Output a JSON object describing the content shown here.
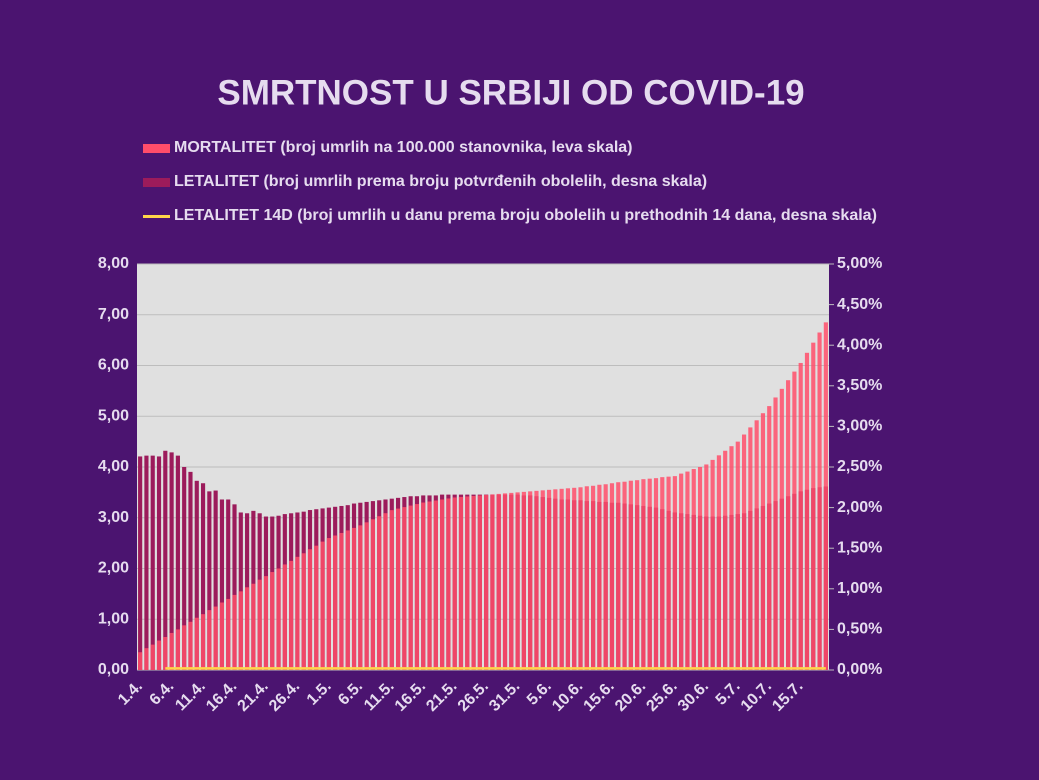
{
  "chart_data": {
    "type": "bar",
    "title": "SMRTNOST U SRBIJI OD COVID-19",
    "categories": [
      "1.4.",
      null,
      null,
      null,
      null,
      "6.4.",
      null,
      null,
      null,
      null,
      "11.4.",
      null,
      null,
      null,
      null,
      "16.4.",
      null,
      null,
      null,
      null,
      "21.4.",
      null,
      null,
      null,
      null,
      "26.4.",
      null,
      null,
      null,
      null,
      "1.5.",
      null,
      null,
      null,
      null,
      "6.5.",
      null,
      null,
      null,
      null,
      "11.5.",
      null,
      null,
      null,
      null,
      "16.5.",
      null,
      null,
      null,
      null,
      "21.5.",
      null,
      null,
      null,
      null,
      "26.5.",
      null,
      null,
      null,
      null,
      "31.5.",
      null,
      null,
      null,
      null,
      "5.6.",
      null,
      null,
      null,
      null,
      "10.6.",
      null,
      null,
      null,
      null,
      "15.6.",
      null,
      null,
      null,
      null,
      "20.6.",
      null,
      null,
      null,
      null,
      "25.6.",
      null,
      null,
      null,
      null,
      "30.6.",
      null,
      null,
      null,
      null,
      "5.7.",
      null,
      null,
      null,
      null,
      "10.7.",
      null,
      null,
      null,
      null,
      "15.7.",
      null,
      null,
      null,
      null
    ],
    "series": [
      {
        "name": "LETALITET (broj umrlih prema broju potvrđenih obolelih, desna skala)",
        "color": "#9c1b5b",
        "axis": "y2",
        "values": [
          2.63,
          2.64,
          2.64,
          2.63,
          2.7,
          2.68,
          2.64,
          2.5,
          2.44,
          2.33,
          2.3,
          2.2,
          2.21,
          2.1,
          2.1,
          2.04,
          1.94,
          1.93,
          1.96,
          1.93,
          1.89,
          1.89,
          1.9,
          1.92,
          1.93,
          1.94,
          1.95,
          1.97,
          1.98,
          1.99,
          2.0,
          2.01,
          2.02,
          2.03,
          2.05,
          2.06,
          2.07,
          2.08,
          2.09,
          2.1,
          2.11,
          2.12,
          2.13,
          2.14,
          2.14,
          2.15,
          2.15,
          2.15,
          2.16,
          2.16,
          2.16,
          2.16,
          2.16,
          2.16,
          2.16,
          2.16,
          2.16,
          2.16,
          2.16,
          2.16,
          2.16,
          2.15,
          2.15,
          2.14,
          2.13,
          2.12,
          2.11,
          2.1,
          2.1,
          2.09,
          2.09,
          2.08,
          2.08,
          2.07,
          2.07,
          2.06,
          2.06,
          2.05,
          2.04,
          2.03,
          2.02,
          2.01,
          2.0,
          1.98,
          1.96,
          1.94,
          1.93,
          1.92,
          1.91,
          1.9,
          1.89,
          1.89,
          1.89,
          1.9,
          1.91,
          1.92,
          1.93,
          1.96,
          1.99,
          2.02,
          2.05,
          2.08,
          2.11,
          2.14,
          2.17,
          2.2,
          2.22,
          2.24,
          2.25,
          2.26
        ]
      },
      {
        "name": "MORTALITET (broj umrlih na 100.000 stanovnika, leva skala)",
        "color": "#ff4d6a",
        "axis": "y",
        "values": [
          0.35,
          0.43,
          0.5,
          0.58,
          0.65,
          0.73,
          0.8,
          0.88,
          0.95,
          1.03,
          1.1,
          1.18,
          1.25,
          1.33,
          1.4,
          1.48,
          1.55,
          1.63,
          1.7,
          1.78,
          1.85,
          1.93,
          2.0,
          2.08,
          2.15,
          2.23,
          2.3,
          2.38,
          2.45,
          2.53,
          2.6,
          2.65,
          2.7,
          2.75,
          2.8,
          2.85,
          2.91,
          2.97,
          3.03,
          3.09,
          3.15,
          3.18,
          3.21,
          3.24,
          3.27,
          3.3,
          3.32,
          3.34,
          3.36,
          3.38,
          3.4,
          3.41,
          3.42,
          3.43,
          3.44,
          3.45,
          3.46,
          3.47,
          3.48,
          3.49,
          3.5,
          3.51,
          3.52,
          3.53,
          3.54,
          3.55,
          3.56,
          3.57,
          3.58,
          3.59,
          3.6,
          3.62,
          3.63,
          3.65,
          3.66,
          3.68,
          3.7,
          3.71,
          3.73,
          3.74,
          3.76,
          3.77,
          3.78,
          3.8,
          3.81,
          3.82,
          3.87,
          3.91,
          3.96,
          4.0,
          4.05,
          4.14,
          4.23,
          4.32,
          4.41,
          4.5,
          4.64,
          4.78,
          4.92,
          5.06,
          5.2,
          5.37,
          5.54,
          5.71,
          5.88,
          6.05,
          6.25,
          6.45,
          6.65,
          6.85
        ]
      },
      {
        "name": "LETALITET 14D (broj umrlih u danu prema broju obolelih u prethodnih 14 dana, desna skala)",
        "color": "#ffd54a",
        "axis": "y2",
        "type": "line",
        "values": [
          null,
          null,
          null,
          null,
          0.02,
          0.02,
          0.02,
          0.02,
          0.02,
          0.02,
          0.02,
          0.02,
          0.02,
          0.02,
          0.02,
          0.02,
          0.02,
          0.02,
          0.02,
          0.02,
          0.02,
          0.02,
          0.02,
          0.02,
          0.02,
          0.02,
          0.02,
          0.02,
          0.02,
          0.02,
          0.02,
          0.02,
          0.02,
          0.02,
          0.02,
          0.02,
          0.02,
          0.02,
          0.02,
          0.02,
          0.02,
          0.02,
          0.02,
          0.02,
          0.02,
          0.02,
          0.02,
          0.02,
          0.02,
          0.02,
          0.02,
          0.02,
          0.02,
          0.02,
          0.02,
          0.02,
          0.02,
          0.02,
          0.02,
          0.02,
          0.02,
          0.02,
          0.02,
          0.02,
          0.02,
          0.02,
          0.02,
          0.02,
          0.02,
          0.02,
          0.02,
          0.02,
          0.02,
          0.02,
          0.02,
          0.02,
          0.02,
          0.02,
          0.02,
          0.02,
          0.02,
          0.02,
          0.02,
          0.02,
          0.02,
          0.02,
          0.02,
          0.02,
          0.02,
          0.02,
          0.02,
          0.02,
          0.02,
          0.02,
          0.02,
          0.02,
          0.02,
          0.02,
          0.02,
          0.02,
          0.02,
          0.02,
          0.02,
          0.02,
          0.02,
          0.02,
          0.02,
          0.02,
          0.02,
          0.02
        ]
      }
    ],
    "ylim": [
      0,
      8
    ],
    "yticks": [
      {
        "value": 0,
        "label": "0,00"
      },
      {
        "value": 1,
        "label": "1,00"
      },
      {
        "value": 2,
        "label": "2,00"
      },
      {
        "value": 3,
        "label": "3,00"
      },
      {
        "value": 4,
        "label": "4,00"
      },
      {
        "value": 5,
        "label": "5,00"
      },
      {
        "value": 6,
        "label": "6,00"
      },
      {
        "value": 7,
        "label": "7,00"
      },
      {
        "value": 8,
        "label": "8,00"
      }
    ],
    "y2lim": [
      0,
      5
    ],
    "y2ticks": [
      {
        "value": 0,
        "label": "0,00%"
      },
      {
        "value": 0.5,
        "label": "0,50%"
      },
      {
        "value": 1,
        "label": "1,00%"
      },
      {
        "value": 1.5,
        "label": "1,50%"
      },
      {
        "value": 2,
        "label": "2,00%"
      },
      {
        "value": 2.5,
        "label": "2,50%"
      },
      {
        "value": 3,
        "label": "3,00%"
      },
      {
        "value": 3.5,
        "label": "3,50%"
      },
      {
        "value": 4,
        "label": "4,00%"
      },
      {
        "value": 4.5,
        "label": "4,50%"
      },
      {
        "value": 5,
        "label": "5,00%"
      }
    ],
    "grid": true
  }
}
